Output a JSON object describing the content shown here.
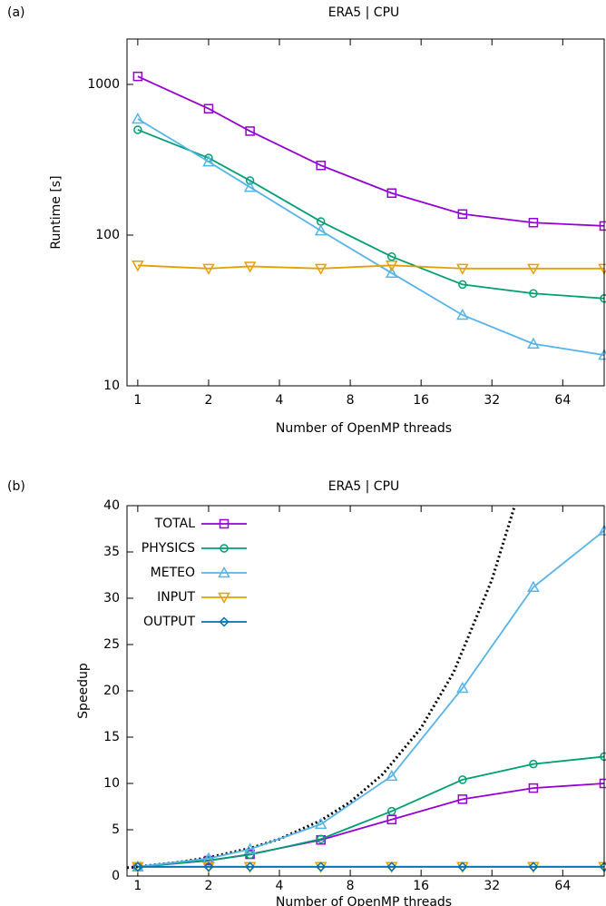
{
  "chart_data": [
    {
      "type": "line",
      "panel_label": "(a)",
      "title": "ERA5 | CPU",
      "x_label": "Number of OpenMP threads",
      "y_label": "Runtime [s]",
      "log_x": true,
      "log_y": true,
      "xlim": [
        0.9,
        96
      ],
      "xticks": [
        1,
        2,
        4,
        8,
        16,
        32,
        64
      ],
      "ylim": [
        10,
        2000
      ],
      "yticks": [
        10,
        100,
        1000
      ],
      "x": [
        1,
        2,
        3,
        6,
        12,
        24,
        48,
        96
      ],
      "series": [
        {
          "color": "#9400d3",
          "marker": "square",
          "values": [
            1130,
            690,
            490,
            290,
            190,
            138,
            121,
            115
          ]
        },
        {
          "color": "#009e73",
          "marker": "circle",
          "values": [
            500,
            325,
            230,
            123,
            72,
            47,
            41,
            38
          ]
        },
        {
          "color": "#56b4e9",
          "marker": "triangle-up",
          "values": [
            590,
            307,
            208,
            107,
            56,
            29.5,
            19,
            16
          ]
        },
        {
          "color": "#e69f00",
          "marker": "triangle-down",
          "values": [
            63,
            60,
            62,
            60,
            63,
            60,
            60,
            60
          ]
        }
      ]
    },
    {
      "type": "line",
      "panel_label": "(b)",
      "title": "ERA5 | CPU",
      "x_label": "Number of OpenMP threads",
      "y_label": "Speedup",
      "log_x": true,
      "log_y": false,
      "legend": "upper left",
      "xlim": [
        0.9,
        96
      ],
      "xticks": [
        1,
        2,
        4,
        8,
        16,
        32,
        64
      ],
      "ylim": [
        0,
        40
      ],
      "yticks": [
        0,
        5,
        10,
        15,
        20,
        25,
        30,
        35,
        40
      ],
      "x": [
        1,
        2,
        3,
        6,
        12,
        24,
        48,
        96
      ],
      "series": [
        {
          "name": "TOTAL",
          "color": "#9400d3",
          "marker": "square",
          "values": [
            1,
            1.67,
            2.35,
            3.9,
            6.1,
            8.3,
            9.5,
            10
          ]
        },
        {
          "name": "PHYSICS",
          "color": "#009e73",
          "marker": "circle",
          "values": [
            1,
            1.7,
            2.3,
            4,
            7,
            10.4,
            12.1,
            12.9
          ]
        },
        {
          "name": "METEO",
          "color": "#56b4e9",
          "marker": "triangle-up",
          "values": [
            1,
            1.9,
            2.9,
            5.6,
            10.8,
            20.3,
            31.2,
            37.3
          ]
        },
        {
          "name": "INPUT",
          "color": "#e69f00",
          "marker": "triangle-down",
          "values": [
            1,
            1,
            1,
            1,
            1,
            1,
            1,
            1
          ]
        },
        {
          "name": "OUTPUT",
          "color": "#0072b2",
          "marker": "diamond",
          "values": [
            1,
            1,
            1,
            1,
            1,
            1,
            1,
            1
          ]
        }
      ],
      "reference_line": {
        "color": "#000000",
        "x": [
          0.9,
          1,
          1.5,
          2,
          3,
          4,
          6,
          8,
          11,
          16,
          22,
          32,
          40
        ],
        "values": [
          0.9,
          1,
          1.5,
          2,
          3,
          4,
          6,
          8,
          11,
          16,
          22,
          32,
          40
        ]
      }
    }
  ]
}
